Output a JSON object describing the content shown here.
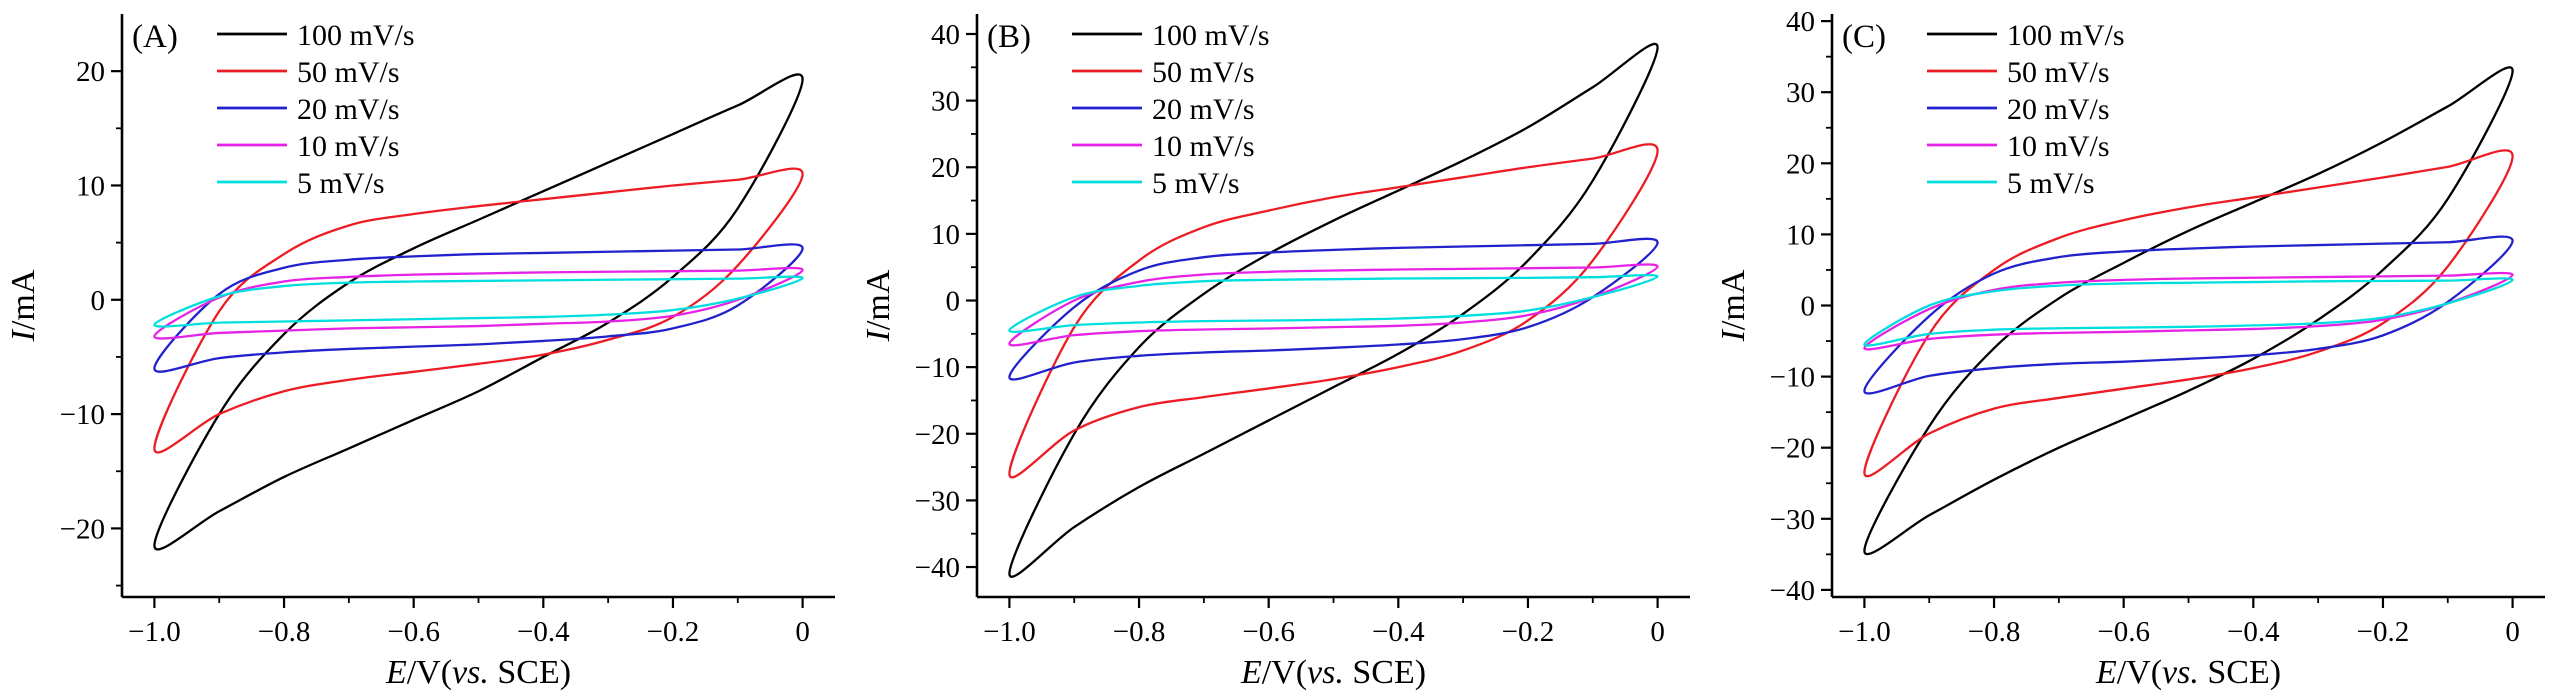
{
  "figure": {
    "background": "#ffffff",
    "description": "Cyclic voltammetry curves at different scan rates, three panels"
  },
  "colors": {
    "rate_100": "#000000",
    "rate_50": "#ed1c24",
    "rate_20": "#2222cc",
    "rate_10": "#e522e5",
    "rate_5": "#00dede"
  },
  "chart_data": [
    {
      "type": "line",
      "chart_kind": "cyclic_voltammogram",
      "panel_label": "(A)",
      "xlabel": "E/V(vs. SCE)",
      "ylabel": "I/mA",
      "xlabel_parts": [
        [
          "E",
          true
        ],
        [
          "/V(",
          false
        ],
        [
          "vs.",
          true
        ],
        [
          " SCE)",
          false
        ]
      ],
      "ylabel_parts": [
        [
          "I",
          true
        ],
        [
          "/mA",
          false
        ]
      ],
      "xlim": [
        -1.05,
        0.05
      ],
      "ylim": [
        -26,
        25
      ],
      "x_ticks": [
        -1.0,
        -0.8,
        -0.6,
        -0.4,
        -0.2,
        0
      ],
      "x_tick_labels": [
        "−1.0",
        "−0.8",
        "−0.6",
        "−0.4",
        "−0.2",
        "0"
      ],
      "x_minor_ticks": [
        -0.9,
        -0.7,
        -0.5,
        -0.3,
        -0.1
      ],
      "y_ticks": [
        -20,
        -10,
        0,
        10,
        20
      ],
      "y_tick_labels": [
        "−20",
        "−10",
        "0",
        "10",
        "20"
      ],
      "y_minor_ticks": [
        -25,
        -15,
        -5,
        5,
        15
      ],
      "legend_position": "top-left",
      "grid": false,
      "E": [
        -1.0,
        -0.9,
        -0.8,
        -0.7,
        -0.6,
        -0.5,
        -0.4,
        -0.3,
        -0.2,
        -0.1,
        0
      ],
      "series": [
        {
          "name": "100 mV/s",
          "color": "#000000",
          "I_forward": [
            -21.5,
            -10,
            -3,
            1.5,
            4.5,
            7,
            9.5,
            12,
            14.5,
            17,
            19.3
          ],
          "I_reverse": [
            -21.5,
            -18.5,
            -15.5,
            -13,
            -10.5,
            -8,
            -5,
            -2,
            2,
            8,
            19.3
          ]
        },
        {
          "name": "50 mV/s",
          "color": "#ed1c24",
          "I_forward": [
            -13,
            -1,
            4,
            6.5,
            7.5,
            8.2,
            8.8,
            9.4,
            10,
            10.5,
            11
          ],
          "I_reverse": [
            -13,
            -10,
            -8,
            -7,
            -6.3,
            -5.6,
            -4.8,
            -3.5,
            -1.5,
            3,
            11
          ]
        },
        {
          "name": "20 mV/s",
          "color": "#2222cc",
          "I_forward": [
            -6,
            0.5,
            2.8,
            3.5,
            3.8,
            4.0,
            4.1,
            4.2,
            4.3,
            4.4,
            4.5
          ],
          "I_reverse": [
            -6,
            -5.1,
            -4.6,
            -4.3,
            -4.1,
            -3.9,
            -3.6,
            -3.2,
            -2.5,
            -0.5,
            4.5
          ]
        },
        {
          "name": "10 mV/s",
          "color": "#e522e5",
          "I_forward": [
            -3.2,
            0.2,
            1.6,
            2.0,
            2.2,
            2.3,
            2.4,
            2.45,
            2.5,
            2.55,
            2.6
          ],
          "I_reverse": [
            -3.2,
            -2.9,
            -2.7,
            -2.5,
            -2.4,
            -2.3,
            -2.1,
            -1.9,
            -1.4,
            0,
            2.6
          ]
        },
        {
          "name": "5 mV/s",
          "color": "#00dede",
          "I_forward": [
            -2.2,
            0.3,
            1.2,
            1.5,
            1.6,
            1.65,
            1.7,
            1.75,
            1.8,
            1.85,
            1.9
          ],
          "I_reverse": [
            -2.2,
            -2.0,
            -1.9,
            -1.8,
            -1.7,
            -1.6,
            -1.5,
            -1.3,
            -0.9,
            0.1,
            1.9
          ]
        }
      ]
    },
    {
      "type": "line",
      "chart_kind": "cyclic_voltammogram",
      "panel_label": "(B)",
      "xlabel": "E/V(vs. SCE)",
      "ylabel": "I/mA",
      "xlabel_parts": [
        [
          "E",
          true
        ],
        [
          "/V(",
          false
        ],
        [
          "vs.",
          true
        ],
        [
          " SCE)",
          false
        ]
      ],
      "ylabel_parts": [
        [
          "I",
          true
        ],
        [
          "/mA",
          false
        ]
      ],
      "xlim": [
        -1.05,
        0.05
      ],
      "ylim": [
        -44.5,
        43
      ],
      "x_ticks": [
        -1.0,
        -0.8,
        -0.6,
        -0.4,
        -0.2,
        0
      ],
      "x_tick_labels": [
        "−1.0",
        "−0.8",
        "−0.6",
        "−0.4",
        "−0.2",
        "0"
      ],
      "x_minor_ticks": [
        -0.9,
        -0.7,
        -0.5,
        -0.3,
        -0.1
      ],
      "y_ticks": [
        -40,
        -30,
        -20,
        -10,
        0,
        10,
        20,
        30,
        40
      ],
      "y_tick_labels": [
        "−40",
        "−30",
        "−20",
        "−10",
        "0",
        "10",
        "20",
        "30",
        "40"
      ],
      "y_minor_ticks": [
        -35,
        -25,
        -15,
        -5,
        5,
        15,
        25,
        35
      ],
      "legend_position": "top-left",
      "grid": false,
      "E": [
        -1.0,
        -0.9,
        -0.8,
        -0.7,
        -0.6,
        -0.5,
        -0.4,
        -0.3,
        -0.2,
        -0.1,
        0
      ],
      "series": [
        {
          "name": "100 mV/s",
          "color": "#000000",
          "I_forward": [
            -41,
            -20,
            -7,
            1,
            7,
            12,
            16.5,
            21,
            26,
            32,
            38
          ],
          "I_reverse": [
            -41,
            -34,
            -28,
            -23,
            -18,
            -13,
            -8,
            -2,
            6,
            18,
            38
          ]
        },
        {
          "name": "50 mV/s",
          "color": "#ed1c24",
          "I_forward": [
            -26,
            -4,
            6,
            11,
            13.5,
            15.5,
            17,
            18.5,
            20,
            21.3,
            22.5
          ],
          "I_reverse": [
            -26,
            -19.5,
            -16,
            -14.5,
            -13.2,
            -11.8,
            -10,
            -7.5,
            -3,
            6,
            22.5
          ]
        },
        {
          "name": "20 mV/s",
          "color": "#2222cc",
          "I_forward": [
            -11.5,
            -1,
            4.5,
            6.5,
            7.2,
            7.6,
            7.9,
            8.1,
            8.3,
            8.5,
            8.7
          ],
          "I_reverse": [
            -11.5,
            -9.3,
            -8.3,
            -7.8,
            -7.5,
            -7.1,
            -6.6,
            -5.8,
            -4,
            0.5,
            8.7
          ]
        },
        {
          "name": "10 mV/s",
          "color": "#e522e5",
          "I_forward": [
            -6.5,
            0,
            2.8,
            3.9,
            4.3,
            4.5,
            4.65,
            4.75,
            4.85,
            4.95,
            5.1
          ],
          "I_reverse": [
            -6.5,
            -5.2,
            -4.6,
            -4.35,
            -4.2,
            -4.0,
            -3.8,
            -3.3,
            -2.2,
            0.5,
            5.1
          ]
        },
        {
          "name": "5 mV/s",
          "color": "#00dede",
          "I_forward": [
            -4.5,
            0.5,
            2.2,
            2.9,
            3.1,
            3.2,
            3.3,
            3.35,
            3.4,
            3.5,
            3.6
          ],
          "I_reverse": [
            -4.5,
            -3.7,
            -3.3,
            -3.1,
            -3.0,
            -2.9,
            -2.7,
            -2.3,
            -1.5,
            0.5,
            3.6
          ]
        }
      ]
    },
    {
      "type": "line",
      "chart_kind": "cyclic_voltammogram",
      "panel_label": "(C)",
      "xlabel": "E/V(vs. SCE)",
      "ylabel": "I/mA",
      "xlabel_parts": [
        [
          "E",
          true
        ],
        [
          "/V(",
          false
        ],
        [
          "vs.",
          true
        ],
        [
          " SCE)",
          false
        ]
      ],
      "ylabel_parts": [
        [
          "I",
          true
        ],
        [
          "/mA",
          false
        ]
      ],
      "xlim": [
        -1.05,
        0.05
      ],
      "ylim": [
        -41,
        41
      ],
      "x_ticks": [
        -1.0,
        -0.8,
        -0.6,
        -0.4,
        -0.2,
        0
      ],
      "x_tick_labels": [
        "−1.0",
        "−0.8",
        "−0.6",
        "−0.4",
        "−0.2",
        "0"
      ],
      "x_minor_ticks": [
        -0.9,
        -0.7,
        -0.5,
        -0.3,
        -0.1
      ],
      "y_ticks": [
        -40,
        -30,
        -20,
        -10,
        0,
        10,
        20,
        30,
        40
      ],
      "y_tick_labels": [
        "−40",
        "−30",
        "−20",
        "−10",
        "0",
        "10",
        "20",
        "30",
        "40"
      ],
      "y_minor_ticks": [
        -35,
        -25,
        -15,
        -5,
        5,
        15,
        25,
        35
      ],
      "legend_position": "top-left",
      "grid": false,
      "E": [
        -1.0,
        -0.9,
        -0.8,
        -0.7,
        -0.6,
        -0.5,
        -0.4,
        -0.3,
        -0.2,
        -0.1,
        0
      ],
      "series": [
        {
          "name": "100 mV/s",
          "color": "#000000",
          "I_forward": [
            -34.5,
            -17,
            -6,
            1,
            6,
            10.5,
            14.5,
            18.5,
            23,
            28,
            33
          ],
          "I_reverse": [
            -34.5,
            -29.5,
            -24.5,
            -20,
            -16,
            -12,
            -7.5,
            -2,
            5,
            15,
            33
          ]
        },
        {
          "name": "50 mV/s",
          "color": "#ed1c24",
          "I_forward": [
            -23.5,
            -4,
            5,
            9.5,
            12,
            13.8,
            15.2,
            16.6,
            18,
            19.5,
            21
          ],
          "I_reverse": [
            -23.5,
            -18,
            -14.5,
            -13,
            -11.7,
            -10.4,
            -8.8,
            -6.5,
            -2.5,
            5.5,
            21
          ]
        },
        {
          "name": "20 mV/s",
          "color": "#2222cc",
          "I_forward": [
            -12,
            -1.5,
            4.5,
            6.8,
            7.6,
            8.0,
            8.3,
            8.5,
            8.7,
            8.9,
            9.1
          ],
          "I_reverse": [
            -12,
            -9.9,
            -8.8,
            -8.2,
            -7.9,
            -7.5,
            -7.0,
            -6.1,
            -4.2,
            0.5,
            9.1
          ]
        },
        {
          "name": "10 mV/s",
          "color": "#e522e5",
          "I_forward": [
            -6,
            -0.5,
            2.2,
            3.2,
            3.6,
            3.8,
            3.9,
            4.0,
            4.1,
            4.2,
            4.3
          ],
          "I_reverse": [
            -6,
            -4.7,
            -4.1,
            -3.85,
            -3.7,
            -3.5,
            -3.3,
            -2.9,
            -2.0,
            0.3,
            4.3
          ]
        },
        {
          "name": "5 mV/s",
          "color": "#00dede",
          "I_forward": [
            -5.5,
            0,
            2.0,
            2.8,
            3.1,
            3.2,
            3.3,
            3.4,
            3.45,
            3.5,
            3.6
          ],
          "I_reverse": [
            -5.5,
            -4.0,
            -3.4,
            -3.2,
            -3.1,
            -3.0,
            -2.8,
            -2.5,
            -1.7,
            0.3,
            3.6
          ]
        }
      ]
    }
  ]
}
